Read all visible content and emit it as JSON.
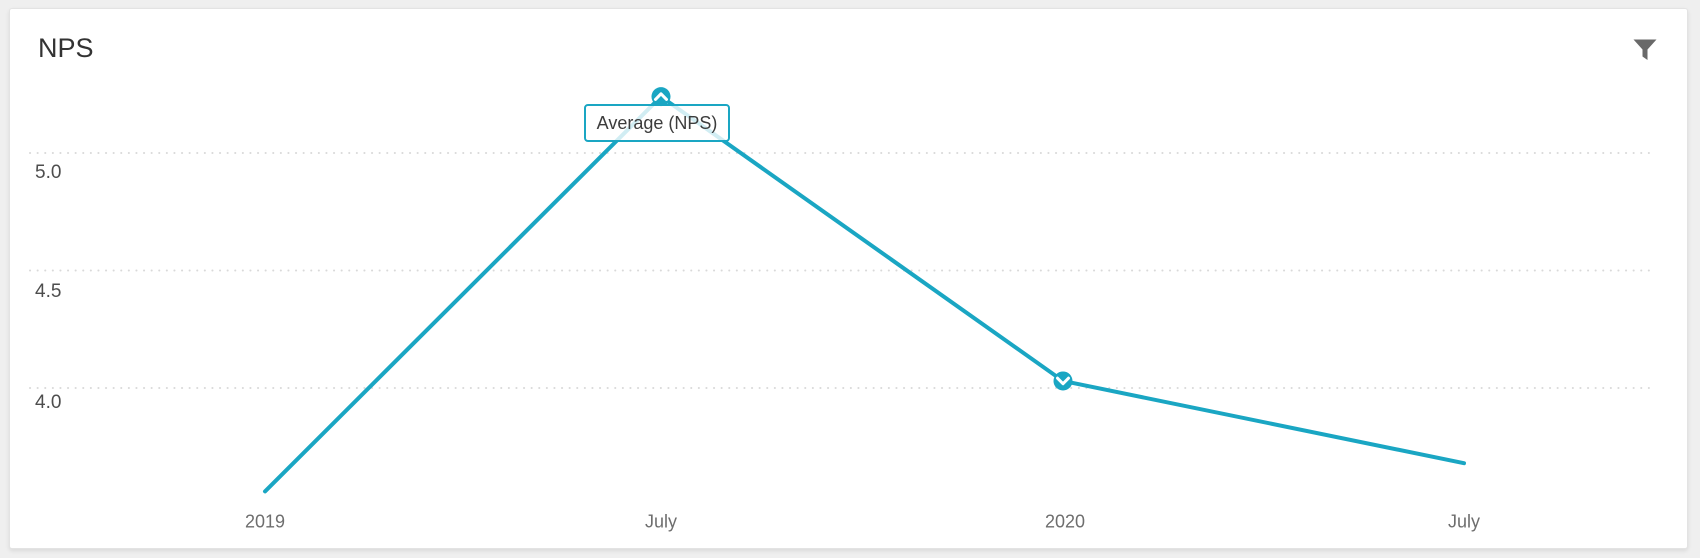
{
  "page": {
    "background_color": "#efefef"
  },
  "card": {
    "title": "NPS",
    "accent_color": "#1aa6c3",
    "toolbar": {
      "filter_icon": "funnel-icon"
    }
  },
  "chart_data": {
    "type": "line",
    "title": "NPS",
    "x_labels": [
      "2019",
      "July",
      "2020",
      "July"
    ],
    "y_tick_labels": [
      "5.0",
      "4.5",
      "4.0"
    ],
    "ylim": [
      3.5,
      5.4
    ],
    "grid": {
      "horizontal_dotted": true,
      "color": "#d9d9d9"
    },
    "legend_position": "none (label tooltip anchored to peak point)",
    "series": [
      {
        "name": "Average (NPS)",
        "color": "#1aa6c3",
        "points": [
          {
            "x_label": "2019",
            "value": 3.56
          },
          {
            "x_label": "July",
            "value": 5.24,
            "marker": "chevron-up-icon",
            "tooltip": "Average (NPS)"
          },
          {
            "x_label": "2020",
            "value": 4.03,
            "marker": "chevron-down-icon"
          },
          {
            "x_label": "July",
            "value": 3.68
          }
        ]
      }
    ]
  }
}
